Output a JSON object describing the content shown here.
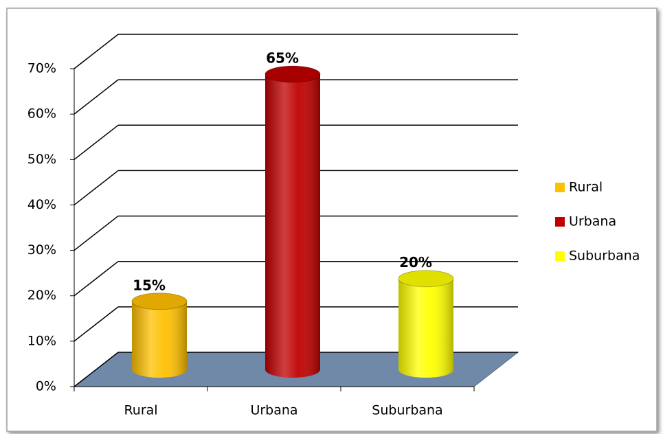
{
  "chart_data": {
    "type": "bar3d",
    "categories": [
      "Rural",
      "Urbana",
      "Suburbana"
    ],
    "values": [
      15,
      65,
      20
    ],
    "value_labels": [
      "15%",
      "65%",
      "20%"
    ],
    "colors": [
      "#ffc000",
      "#c00000",
      "#ffff00"
    ],
    "ylim": [
      0,
      70
    ],
    "yticks": [
      {
        "value": 0,
        "label": "0%"
      },
      {
        "value": 10,
        "label": "10%"
      },
      {
        "value": 20,
        "label": "20%"
      },
      {
        "value": 30,
        "label": "30%"
      },
      {
        "value": 40,
        "label": "40%"
      },
      {
        "value": 50,
        "label": "50%"
      },
      {
        "value": 60,
        "label": "60%"
      },
      {
        "value": 70,
        "label": "70%"
      }
    ],
    "grid": true,
    "legend": "right"
  }
}
